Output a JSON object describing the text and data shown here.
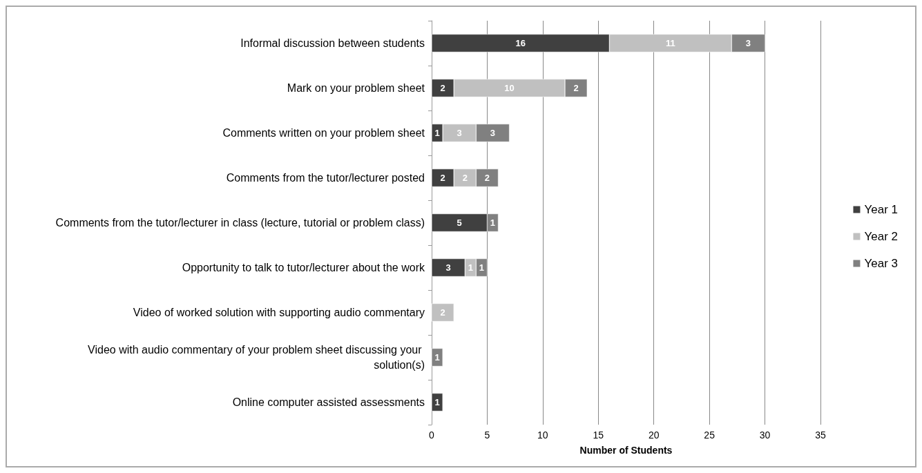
{
  "chart_data": {
    "type": "bar",
    "orientation": "horizontal",
    "stacked": true,
    "xlabel": "Number of Students",
    "categories": [
      "Informal discussion between students",
      "Mark on your problem sheet",
      "Comments written on your problem sheet",
      "Comments from the tutor/lecturer posted",
      "Comments from the tutor/lecturer in class (lecture, tutorial or problem class)",
      "Opportunity to talk to tutor/lecturer about the work",
      "Video of worked solution with supporting audio commentary",
      "Video with audio commentary of your problem sheet discussing your solution(s)",
      "Online computer assisted assessments"
    ],
    "series": [
      {
        "name": "Year 1",
        "color": "#404040",
        "values": [
          16,
          2,
          1,
          2,
          5,
          3,
          null,
          null,
          1
        ]
      },
      {
        "name": "Year 2",
        "color": "#c0c0c0",
        "values": [
          11,
          10,
          3,
          2,
          null,
          1,
          2,
          null,
          null
        ]
      },
      {
        "name": "Year 3",
        "color": "#808080",
        "values": [
          3,
          2,
          3,
          2,
          1,
          1,
          null,
          1,
          null
        ]
      }
    ],
    "xlim": [
      0,
      35
    ],
    "xticks": [
      0,
      5,
      10,
      15,
      20,
      25,
      30,
      35
    ],
    "grid": "x",
    "legend": "right",
    "data_labels": true
  }
}
